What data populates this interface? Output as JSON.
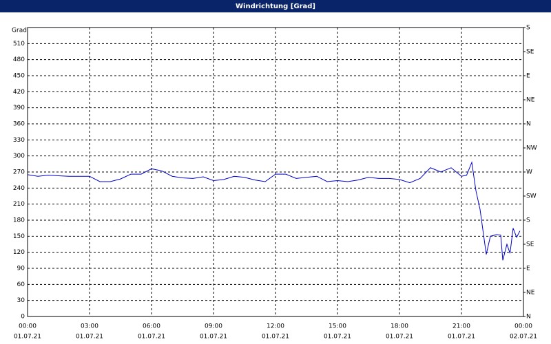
{
  "chart_data": {
    "type": "line",
    "title": "Windrichtung [Grad]",
    "ylabel": "Grad",
    "x": [
      0,
      0.5,
      1,
      1.5,
      2,
      2.5,
      3,
      3.5,
      4,
      4.5,
      5,
      5.5,
      6,
      6.5,
      7,
      7.5,
      8,
      8.5,
      9,
      9.5,
      10,
      10.5,
      11,
      11.5,
      12,
      12.5,
      13,
      13.5,
      14,
      14.5,
      15,
      15.5,
      16,
      16.5,
      17,
      17.5,
      18,
      18.5,
      19,
      19.5,
      20,
      20.5,
      21,
      21.25,
      21.5,
      21.7,
      21.9,
      22.2,
      22.4,
      22.7,
      22.9,
      23,
      23.2,
      23.35,
      23.5,
      23.67,
      23.83
    ],
    "series": [
      {
        "name": "Windrichtung",
        "color": "#0000cc",
        "values": [
          265,
          262,
          264,
          263,
          262,
          262,
          262,
          252,
          252,
          257,
          266,
          266,
          276,
          272,
          262,
          259,
          258,
          261,
          254,
          256,
          262,
          260,
          255,
          252,
          266,
          266,
          258,
          260,
          262,
          252,
          254,
          252,
          255,
          260,
          258,
          258,
          256,
          250,
          258,
          278,
          270,
          278,
          262,
          264,
          288,
          235,
          200,
          116,
          150,
          153,
          152,
          105,
          135,
          118,
          165,
          148,
          160
        ]
      }
    ],
    "xlim": [
      0,
      24
    ],
    "xticks": [
      {
        "value": 0,
        "label": "00:00"
      },
      {
        "value": 3,
        "label": "03:00"
      },
      {
        "value": 6,
        "label": "06:00"
      },
      {
        "value": 9,
        "label": "09:00"
      },
      {
        "value": 12,
        "label": "12:00"
      },
      {
        "value": 15,
        "label": "15:00"
      },
      {
        "value": 18,
        "label": "18:00"
      },
      {
        "value": 21,
        "label": "21:00"
      },
      {
        "value": 24,
        "label": "00:00"
      }
    ],
    "xtick_dates": [
      "01.07.21",
      "01.07.21",
      "01.07.21",
      "01.07.21",
      "01.07.21",
      "01.07.21",
      "01.07.21",
      "01.07.21",
      "02.07.21"
    ],
    "ylim": [
      0,
      540
    ],
    "yticks": [
      0,
      30,
      60,
      90,
      120,
      150,
      180,
      210,
      240,
      270,
      300,
      330,
      360,
      390,
      420,
      450,
      480,
      510
    ],
    "y2lim": [
      0,
      540
    ],
    "y2ticks": [
      {
        "value": 0,
        "label": "N"
      },
      {
        "value": 45,
        "label": "NE"
      },
      {
        "value": 90,
        "label": "E"
      },
      {
        "value": 135,
        "label": "SE"
      },
      {
        "value": 180,
        "label": "S"
      },
      {
        "value": 225,
        "label": "SW"
      },
      {
        "value": 270,
        "label": "W"
      },
      {
        "value": 315,
        "label": "NW"
      },
      {
        "value": 360,
        "label": "N"
      },
      {
        "value": 405,
        "label": "NE"
      },
      {
        "value": 450,
        "label": "E"
      },
      {
        "value": 495,
        "label": "SE"
      },
      {
        "value": 540,
        "label": "S"
      }
    ],
    "grid": true
  }
}
